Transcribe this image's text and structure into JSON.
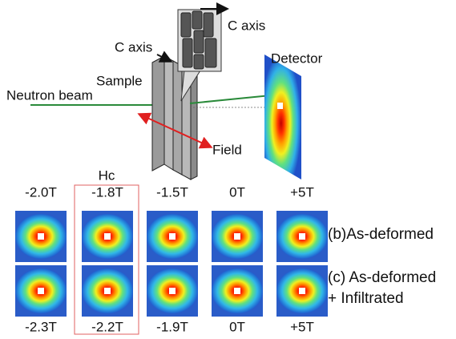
{
  "diagram": {
    "c_axis_sample": "C axis",
    "c_axis_inset": "C axis",
    "detector": "Detector",
    "sample": "Sample",
    "neutron_beam": "Neutron beam",
    "field": "Field"
  },
  "panels": {
    "hc": "Hc",
    "row_b": {
      "label": "(b)As-deformed",
      "fields": [
        "-2.0T",
        "-1.8T",
        "-1.5T",
        "0T",
        "+5T"
      ]
    },
    "row_c": {
      "label_1": "(c) As-deformed",
      "label_2": "+ Infiltrated",
      "fields": [
        "-2.3T",
        "-2.2T",
        "-1.9T",
        "0T",
        "+5T"
      ]
    }
  }
}
